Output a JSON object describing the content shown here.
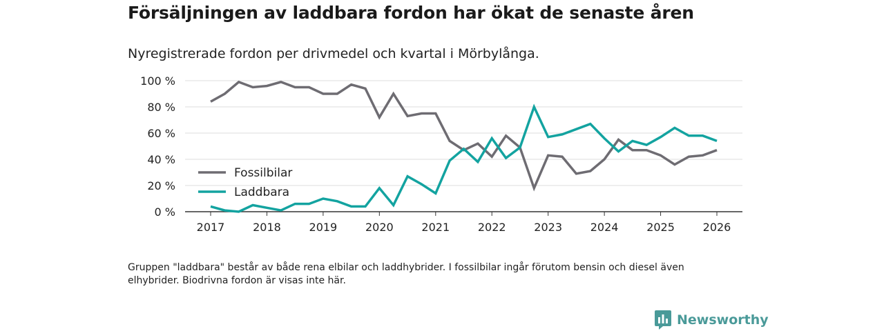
{
  "title": "Försäljningen av laddbara fordon har ökat de senaste åren",
  "subtitle": "Nyregistrerade fordon per drivmedel och kvartal i Mörbylånga.",
  "note": "Gruppen \"laddbara\" består av både rena elbilar och laddhybrider. I fossilbilar ingår förutom bensin och diesel även elhybrider. Biodrivna fordon är visas inte här.",
  "brand": {
    "name": "Newsworthy",
    "icon": "newsworthy-logo-icon"
  },
  "colors": {
    "fossil": "#6e6c72",
    "charge": "#13a3a0",
    "grid": "#dddddd",
    "axis": "#333333",
    "brand": "#4a9a99"
  },
  "chart_data": {
    "type": "line",
    "title": "Nyregistrerade fordon per drivmedel och kvartal i Mörbylånga.",
    "xlabel": "",
    "ylabel": "",
    "x": [
      2017,
      2017.25,
      2017.5,
      2017.75,
      2018,
      2018.25,
      2018.5,
      2018.75,
      2019,
      2019.25,
      2019.5,
      2019.75,
      2020,
      2020.25,
      2020.5,
      2020.75,
      2021,
      2021.25,
      2021.5,
      2021.75,
      2022,
      2022.25,
      2022.5,
      2022.75,
      2023,
      2023.25,
      2023.5,
      2023.75,
      2024,
      2024.25,
      2024.5,
      2024.75,
      2025,
      2025.25,
      2025.5,
      2025.75,
      2026
    ],
    "xticks": [
      "2017",
      "2018",
      "2019",
      "2020",
      "2021",
      "2022",
      "2023",
      "2024",
      "2025",
      "2026"
    ],
    "yticks": [
      "0 %",
      "20 %",
      "40 %",
      "60 %",
      "80 %",
      "100 %"
    ],
    "ylim": [
      0,
      100
    ],
    "grid": true,
    "legend_position": "left-center",
    "series": [
      {
        "name": "Fossilbilar",
        "values": [
          84,
          90,
          99,
          95,
          96,
          99,
          95,
          95,
          90,
          90,
          97,
          94,
          72,
          90,
          73,
          75,
          75,
          54,
          47,
          52,
          42,
          58,
          49,
          18,
          43,
          42,
          29,
          31,
          40,
          55,
          47,
          47,
          43,
          36,
          42,
          43,
          47
        ]
      },
      {
        "name": "Laddbara",
        "values": [
          4,
          1,
          0,
          5,
          3,
          1,
          6,
          6,
          10,
          8,
          4,
          4,
          18,
          5,
          27,
          21,
          14,
          39,
          48,
          38,
          56,
          41,
          49,
          80,
          57,
          59,
          63,
          67,
          56,
          46,
          54,
          51,
          57,
          64,
          58,
          58,
          54
        ]
      }
    ]
  }
}
